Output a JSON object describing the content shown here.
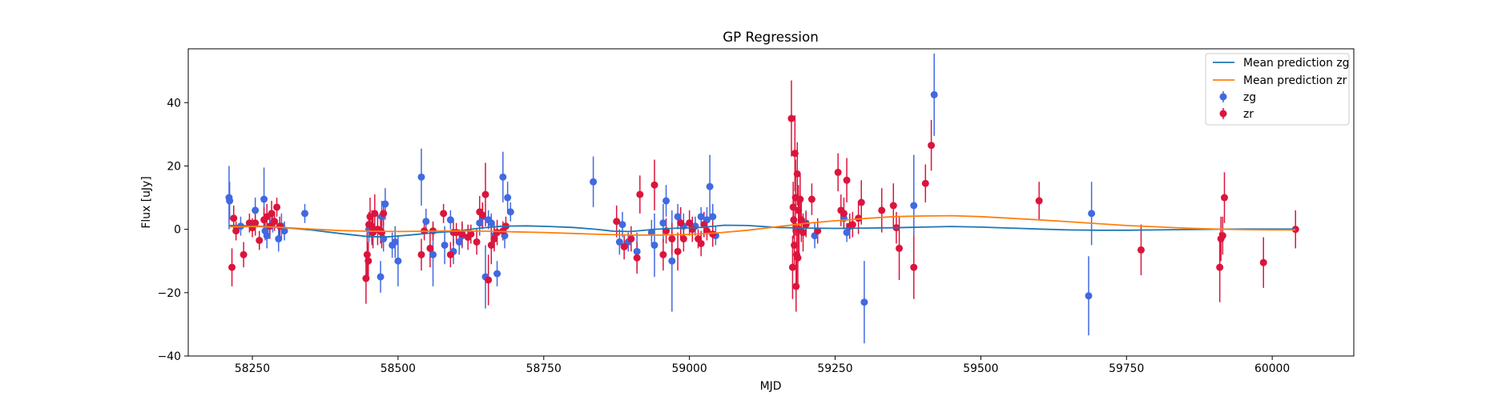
{
  "chart_data": {
    "type": "scatter",
    "title": "GP Regression",
    "xlabel": "MJD",
    "ylabel": "Flux [uJy]",
    "xlim": [
      58140,
      60140
    ],
    "ylim": [
      -40,
      57
    ],
    "xticks": [
      58250,
      58500,
      58750,
      59000,
      59250,
      59500,
      59750,
      60000
    ],
    "yticks": [
      -40,
      -20,
      0,
      20,
      40
    ],
    "legend_position": "upper right",
    "lines": [
      {
        "name": "Mean prediction zg",
        "color": "#1f77b4",
        "x": [
          58210,
          58250,
          58300,
          58350,
          58400,
          58450,
          58480,
          58520,
          58560,
          58600,
          58640,
          58680,
          58720,
          58760,
          58800,
          58840,
          58870,
          58900,
          58940,
          58980,
          59020,
          59060,
          59100,
          59150,
          59200,
          59250,
          59300,
          59350,
          59400,
          59450,
          59500,
          59550,
          59600,
          59650,
          59700,
          59750,
          59800,
          59850,
          59900,
          59950,
          60000,
          60040
        ],
        "y": [
          1.2,
          1.1,
          0.6,
          -0.2,
          -1.3,
          -2.3,
          -2.4,
          -1.8,
          -1.1,
          -0.6,
          0.4,
          1.0,
          1.1,
          0.9,
          0.6,
          0.0,
          -0.6,
          -0.7,
          0.0,
          0.4,
          0.6,
          1.3,
          1.2,
          0.6,
          0.4,
          0.3,
          0.4,
          0.5,
          0.7,
          0.9,
          0.7,
          0.4,
          0.1,
          -0.2,
          -0.3,
          -0.3,
          -0.2,
          -0.1,
          0.0,
          0.1,
          0.1,
          0.1
        ]
      },
      {
        "name": "Mean prediction zr",
        "color": "#ff7f0e",
        "x": [
          58210,
          58260,
          58300,
          58350,
          58400,
          58450,
          58500,
          58550,
          58600,
          58650,
          58700,
          58750,
          58800,
          58850,
          58900,
          58950,
          59000,
          59050,
          59100,
          59150,
          59200,
          59250,
          59300,
          59350,
          59400,
          59450,
          59500,
          59550,
          59600,
          59650,
          59700,
          59750,
          59800,
          59850,
          59900,
          59950,
          60000,
          60040
        ],
        "y": [
          0.8,
          0.9,
          0.6,
          0.1,
          -0.4,
          -0.6,
          -0.7,
          -0.6,
          -0.5,
          -0.6,
          -0.8,
          -1.0,
          -1.3,
          -1.6,
          -1.8,
          -1.8,
          -1.6,
          -1.1,
          -0.3,
          0.8,
          1.9,
          2.7,
          3.4,
          4.0,
          4.2,
          4.3,
          4.0,
          3.5,
          3.0,
          2.4,
          1.8,
          1.2,
          0.8,
          0.4,
          0.1,
          -0.1,
          -0.2,
          -0.2
        ]
      }
    ],
    "series": [
      {
        "name": "zg",
        "color": "#4169e1",
        "points": [
          [
            58210,
            10,
            10
          ],
          [
            58211,
            9,
            6
          ],
          [
            58230,
            1,
            3
          ],
          [
            58255,
            6,
            4
          ],
          [
            58270,
            9.5,
            10
          ],
          [
            58272,
            -0.5,
            3
          ],
          [
            58275,
            -2,
            4
          ],
          [
            58280,
            1,
            3
          ],
          [
            58285,
            2,
            3
          ],
          [
            58295,
            -3,
            4
          ],
          [
            58300,
            1,
            4
          ],
          [
            58305,
            -0.5,
            3
          ],
          [
            58340,
            5,
            3
          ],
          [
            58450,
            0,
            4
          ],
          [
            58455,
            -1,
            4
          ],
          [
            58470,
            -15,
            5
          ],
          [
            58472,
            4,
            5
          ],
          [
            58475,
            -3,
            4
          ],
          [
            58478,
            8,
            5
          ],
          [
            58490,
            -5,
            4
          ],
          [
            58495,
            -4,
            5
          ],
          [
            58500,
            -10,
            8
          ],
          [
            58540,
            16.5,
            9
          ],
          [
            58548,
            2.5,
            4
          ],
          [
            58560,
            -8,
            10
          ],
          [
            58580,
            -5,
            6
          ],
          [
            58590,
            3,
            3
          ],
          [
            58595,
            -7,
            4
          ],
          [
            58605,
            -4,
            4
          ],
          [
            58610,
            -2,
            4
          ],
          [
            58640,
            2,
            4
          ],
          [
            58645,
            4,
            4
          ],
          [
            58650,
            -15,
            10
          ],
          [
            58655,
            3,
            3
          ],
          [
            58660,
            2,
            3
          ],
          [
            58665,
            -2,
            4
          ],
          [
            58670,
            -14,
            4
          ],
          [
            58680,
            16.5,
            8
          ],
          [
            58683,
            -2,
            4
          ],
          [
            58688,
            10,
            5
          ],
          [
            58693,
            5.5,
            3
          ],
          [
            58835,
            15,
            8
          ],
          [
            58880,
            -4,
            4
          ],
          [
            58885,
            1.5,
            4
          ],
          [
            58895,
            -4,
            3
          ],
          [
            58910,
            -7,
            6
          ],
          [
            58935,
            -1,
            4
          ],
          [
            58940,
            -5,
            10
          ],
          [
            58955,
            2,
            6
          ],
          [
            58960,
            9,
            5
          ],
          [
            58970,
            -10,
            16
          ],
          [
            58980,
            4,
            4
          ],
          [
            58990,
            1,
            4
          ],
          [
            59010,
            1,
            3
          ],
          [
            59020,
            4,
            3
          ],
          [
            59030,
            3,
            4
          ],
          [
            59035,
            13.5,
            10
          ],
          [
            59040,
            4,
            4
          ],
          [
            59045,
            -2,
            3
          ],
          [
            59200,
            2,
            4
          ],
          [
            59215,
            -2,
            4
          ],
          [
            59265,
            3.5,
            3
          ],
          [
            59270,
            -1,
            3
          ],
          [
            59300,
            -23,
            13
          ],
          [
            59385,
            7.5,
            16
          ],
          [
            59420,
            42.5,
            13
          ],
          [
            59685,
            -21,
            12.5
          ],
          [
            59690,
            5,
            10
          ]
        ]
      },
      {
        "name": "zr",
        "color": "#dc143c",
        "points": [
          [
            58215,
            -12,
            6
          ],
          [
            58218,
            3.5,
            4
          ],
          [
            58222,
            -0.5,
            3
          ],
          [
            58235,
            -8,
            4
          ],
          [
            58245,
            2,
            3
          ],
          [
            58250,
            0.5,
            3
          ],
          [
            58255,
            2,
            4
          ],
          [
            58262,
            -3.5,
            3
          ],
          [
            58270,
            3,
            4
          ],
          [
            58275,
            4,
            4
          ],
          [
            58280,
            1,
            4
          ],
          [
            58283,
            5,
            4
          ],
          [
            58288,
            2.5,
            3
          ],
          [
            58292,
            7,
            3
          ],
          [
            58297,
            1,
            3
          ],
          [
            58445,
            -15.5,
            8
          ],
          [
            58447,
            -8,
            7
          ],
          [
            58449,
            -10,
            6
          ],
          [
            58450,
            1.5,
            4
          ],
          [
            58452,
            4,
            6
          ],
          [
            58455,
            1,
            5
          ],
          [
            58457,
            -1,
            5
          ],
          [
            58460,
            5,
            6
          ],
          [
            58465,
            0,
            5
          ],
          [
            58470,
            -0.5,
            4
          ],
          [
            58472,
            -1,
            5
          ],
          [
            58475,
            5,
            4
          ],
          [
            58540,
            -8,
            5
          ],
          [
            58545,
            -0.5,
            3
          ],
          [
            58555,
            -6,
            6
          ],
          [
            58560,
            -0.5,
            3
          ],
          [
            58578,
            5,
            3
          ],
          [
            58590,
            -8,
            4
          ],
          [
            58595,
            -1,
            4
          ],
          [
            58600,
            -1,
            3
          ],
          [
            58610,
            -1.5,
            4
          ],
          [
            58620,
            -2.5,
            4
          ],
          [
            58625,
            -1.5,
            3
          ],
          [
            58635,
            -4,
            4
          ],
          [
            58640,
            5.5,
            5
          ],
          [
            58645,
            4.5,
            4
          ],
          [
            58650,
            11,
            10
          ],
          [
            58655,
            -16,
            8
          ],
          [
            58660,
            -5,
            6
          ],
          [
            58665,
            -3,
            4
          ],
          [
            58670,
            -1,
            4
          ],
          [
            58680,
            -0.5,
            3
          ],
          [
            58685,
            1,
            3
          ],
          [
            58875,
            2.5,
            5
          ],
          [
            58888,
            -5.5,
            4
          ],
          [
            58900,
            -3,
            4
          ],
          [
            58910,
            -9,
            5
          ],
          [
            58915,
            11,
            6
          ],
          [
            58940,
            14,
            8
          ],
          [
            58955,
            -8,
            5
          ],
          [
            58960,
            -0.5,
            4
          ],
          [
            58970,
            -3,
            5
          ],
          [
            58980,
            -7,
            6
          ],
          [
            58985,
            2,
            5
          ],
          [
            58990,
            -3,
            4
          ],
          [
            59000,
            2,
            4
          ],
          [
            59005,
            0,
            4
          ],
          [
            59015,
            -3,
            3
          ],
          [
            59020,
            -4.5,
            4
          ],
          [
            59025,
            1.5,
            4
          ],
          [
            59030,
            -0.5,
            3
          ],
          [
            59040,
            -1.5,
            4
          ],
          [
            59175,
            35,
            12
          ],
          [
            59177,
            -12,
            10
          ],
          [
            59178,
            7,
            8
          ],
          [
            59179,
            3,
            6
          ],
          [
            59180,
            -5,
            8
          ],
          [
            59181,
            24,
            12
          ],
          [
            59182,
            10,
            12
          ],
          [
            59183,
            -18,
            8
          ],
          [
            59184,
            -8,
            10
          ],
          [
            59185,
            17.5,
            10
          ],
          [
            59186,
            -9,
            10
          ],
          [
            59187,
            6,
            8
          ],
          [
            59188,
            0,
            10
          ],
          [
            59190,
            9.5,
            8
          ],
          [
            59192,
            3,
            7
          ],
          [
            59195,
            -1,
            6
          ],
          [
            59200,
            1.5,
            4
          ],
          [
            59210,
            9.5,
            5
          ],
          [
            59220,
            -0.5,
            4
          ],
          [
            59255,
            18,
            6
          ],
          [
            59260,
            6,
            5
          ],
          [
            59265,
            5,
            5
          ],
          [
            59270,
            15.5,
            7
          ],
          [
            59275,
            1,
            4
          ],
          [
            59280,
            1.5,
            4
          ],
          [
            59290,
            3.5,
            5
          ],
          [
            59295,
            8.5,
            7
          ],
          [
            59330,
            6,
            7
          ],
          [
            59350,
            7.5,
            7
          ],
          [
            59355,
            0.5,
            5
          ],
          [
            59360,
            -6,
            10
          ],
          [
            59385,
            -12,
            10
          ],
          [
            59405,
            14.5,
            6
          ],
          [
            59415,
            26.5,
            8
          ],
          [
            59600,
            9,
            6
          ],
          [
            59775,
            -6.5,
            8
          ],
          [
            59910,
            -12,
            11
          ],
          [
            59912,
            -3,
            7
          ],
          [
            59915,
            -2,
            6
          ],
          [
            59918,
            10,
            8
          ],
          [
            59985,
            -10.5,
            8
          ],
          [
            60040,
            0,
            6
          ]
        ]
      }
    ]
  }
}
